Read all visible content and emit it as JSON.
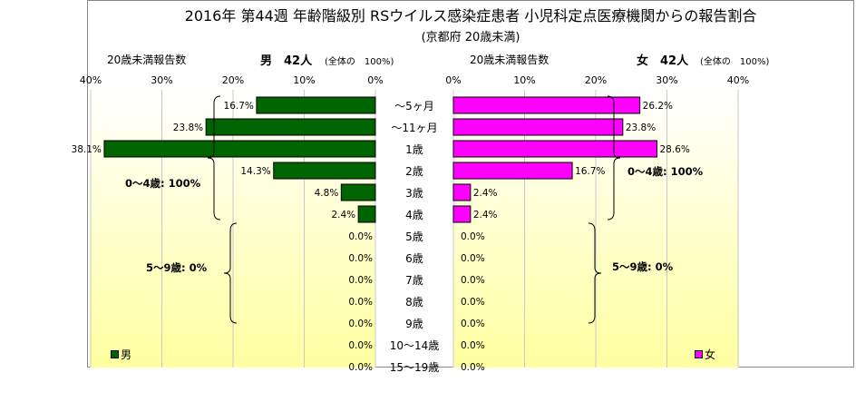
{
  "title": "2016年 第44週 年齢階級別 RSウイルス感染症患者 小児科定点医療機関からの報告割合",
  "subtitle": "(京都府 20歳未満)",
  "colors": {
    "male": "#006400",
    "female": "#ff00ff",
    "background_top": "#ffffff",
    "background_bottom": "#ffffa0"
  },
  "male": {
    "header_label": "20歳未満報告数",
    "sex_count": "男　42人",
    "total_note": "(全体の　100%)",
    "legend": "男",
    "axis_ticks": [
      "40%",
      "30%",
      "20%",
      "10%",
      "0%"
    ],
    "group_0_4": "0～4歳: 100%",
    "group_5_9": "5～9歳: 0%"
  },
  "female": {
    "header_label": "20歳未満報告数",
    "sex_count": "女　42人",
    "total_note": "(全体の　100%)",
    "legend": "女",
    "axis_ticks": [
      "0%",
      "10%",
      "20%",
      "30%",
      "40%"
    ],
    "group_0_4": "0～4歳: 100%",
    "group_5_9": "5～9歳: 0%"
  },
  "chart_data": {
    "type": "bar",
    "orientation": "horizontal-population-pyramid",
    "title": "2016年 第44週 年齢階級別 RSウイルス感染症患者 小児科定点医療機関からの報告割合",
    "subtitle": "(京都府 20歳未満)",
    "categories": [
      "～5ヶ月",
      "～11ヶ月",
      "1歳",
      "2歳",
      "3歳",
      "4歳",
      "5歳",
      "6歳",
      "7歳",
      "8歳",
      "9歳",
      "10～14歳",
      "15～19歳"
    ],
    "xlim": [
      0,
      40
    ],
    "series": [
      {
        "name": "男",
        "values": [
          16.7,
          23.8,
          38.1,
          14.3,
          4.8,
          2.4,
          0,
          0,
          0,
          0,
          0,
          0,
          0
        ],
        "labels": [
          "16.7%",
          "23.8%",
          "38.1%",
          "14.3%",
          "4.8%",
          "2.4%",
          "0.0%",
          "0.0%",
          "0.0%",
          "0.0%",
          "0.0%",
          "0.0%",
          "0.0%"
        ]
      },
      {
        "name": "女",
        "values": [
          26.2,
          23.8,
          28.6,
          16.7,
          2.4,
          2.4,
          0,
          0,
          0,
          0,
          0,
          0,
          0
        ],
        "labels": [
          "26.2%",
          "23.8%",
          "28.6%",
          "16.7%",
          "2.4%",
          "2.4%",
          "0.0%",
          "0.0%",
          "0.0%",
          "0.0%",
          "0.0%",
          "0.0%",
          "0.0%"
        ]
      }
    ],
    "legend": "bottom-left / bottom-right",
    "grid": true
  }
}
